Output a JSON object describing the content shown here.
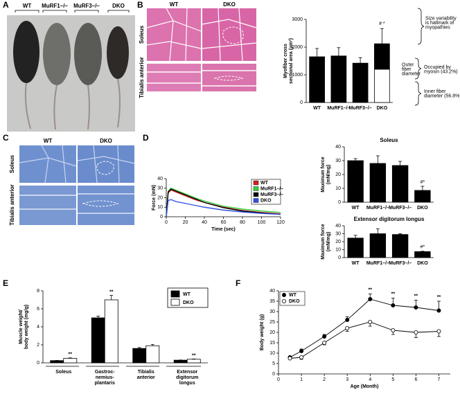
{
  "panel_labels": [
    "A",
    "B",
    "C",
    "D",
    "E",
    "F"
  ],
  "images": {
    "a_labels": [
      "WT",
      "MuRF1–/–",
      "MuRF3–/–",
      "DKO"
    ],
    "b_columns": [
      "WT",
      "DKO"
    ],
    "b_rows": [
      "Soleus",
      "Tibialis anterior"
    ],
    "c_columns": [
      "WT",
      "DKO"
    ],
    "c_rows": [
      "Soleus",
      "Tibialis anterior"
    ]
  },
  "chart_data": [
    {
      "type": "bar",
      "stacked": true,
      "y_label": "Myofiber cross\nsectional area (µm²)",
      "categories": [
        "WT",
        "MuRF1–/–",
        "MuRF3–/–",
        "DKO"
      ],
      "series": [
        {
          "color": "#ffffff",
          "values": [
            null,
            null,
            null,
            1200
          ]
        },
        {
          "color": "#000000",
          "values": [
            1650,
            1680,
            1420,
            920
          ],
          "errors": [
            300,
            300,
            200,
            550
          ]
        }
      ],
      "ylim": [
        0,
        3000
      ],
      "yticks": [
        0,
        1000,
        2000,
        3000
      ],
      "annotations": [
        "# *",
        "Size variability\nis hallmark of\nmyopathies",
        "Outer\nfiber\ndiameter",
        "Occupied by\nmyosin (43.2%)",
        "Inner fiber\ndiameter (56.8%)"
      ]
    },
    {
      "type": "line",
      "x": [
        0,
        2,
        5,
        10,
        20,
        30,
        40,
        60,
        80,
        100,
        120
      ],
      "series": [
        {
          "name": "WT",
          "color": "#d62020",
          "values": [
            0,
            25,
            28,
            26,
            22,
            18,
            15,
            10,
            6.5,
            4.5,
            3
          ]
        },
        {
          "name": "MuRF1–/–",
          "color": "#3ccc3c",
          "values": [
            0,
            27,
            30,
            28,
            24,
            20,
            16.5,
            11,
            8,
            6,
            4.5
          ]
        },
        {
          "name": "MuRF3–/–",
          "color": "#000000",
          "values": [
            0,
            26,
            29,
            27,
            23,
            19,
            15,
            9.5,
            6,
            4,
            2.5
          ]
        },
        {
          "name": "DKO",
          "color": "#3050e0",
          "values": [
            0,
            17,
            18,
            16,
            14,
            12,
            10,
            7,
            5,
            3.5,
            2.5
          ]
        }
      ],
      "xlim": [
        0,
        120
      ],
      "xticks": [
        0,
        20,
        40,
        60,
        80,
        100,
        120
      ],
      "ylim": [
        0,
        40
      ],
      "yticks": [
        0,
        10,
        20,
        30,
        40
      ],
      "x_label": "Time (sec)",
      "y_label": "Force (mN)",
      "legend": "upper right"
    },
    {
      "type": "bar",
      "title": "Soleus",
      "y_label": "Maximum force\n(mN/mg)",
      "categories": [
        "WT",
        "MuRF1–/–",
        "MuRF3–/–",
        "DKO"
      ],
      "values": [
        30,
        28,
        26.5,
        8.5
      ],
      "errors": [
        1.5,
        5.5,
        3,
        3
      ],
      "color": "#000000",
      "ylim": [
        0,
        40
      ],
      "yticks": [
        0,
        10,
        20,
        30,
        40
      ],
      "annotations": [
        "#*"
      ]
    },
    {
      "type": "bar",
      "title": "Extensor digitorum longus",
      "y_label": "Maximum force\n(mN/mg)",
      "categories": [
        "WT",
        "MuRF1–/–",
        "MuRF3–/–",
        "DKO"
      ],
      "values": [
        24.5,
        30,
        29,
        7.5
      ],
      "errors": [
        3.5,
        6,
        1,
        0.5
      ],
      "color": "#000000",
      "ylim": [
        0,
        40
      ],
      "yticks": [
        0,
        10,
        20,
        30,
        40
      ],
      "annotations": [
        "#*"
      ]
    },
    {
      "type": "bar",
      "y_label": "Muscle weight/\nbody weight (mg/g)",
      "categories": [
        "Soleus",
        "Gastroc-\nnemius-\nplantaris",
        "Tibialis\nanterior",
        "Extensor\ndigitorum\nlongus"
      ],
      "series": [
        {
          "name": "WT",
          "color": "#000000",
          "values": [
            0.25,
            5.0,
            1.6,
            0.3
          ],
          "errors": [
            0.02,
            0.2,
            0.1,
            0.02
          ]
        },
        {
          "name": "DKO",
          "color": "#ffffff",
          "values": [
            0.5,
            7.0,
            1.9,
            0.4
          ],
          "errors": [
            0.05,
            0.5,
            0.15,
            0.03
          ]
        }
      ],
      "ylim": [
        0,
        8
      ],
      "yticks": [
        0,
        2,
        4,
        6,
        8
      ],
      "legend": "upper right",
      "annotations": [
        "**",
        "**",
        "**"
      ]
    },
    {
      "type": "line",
      "markers": true,
      "x": [
        0.5,
        1,
        2,
        3,
        4,
        5,
        6,
        7
      ],
      "series": [
        {
          "name": "WT",
          "color": "#000000",
          "marker": "filled",
          "values": [
            8,
            11,
            18,
            26,
            36,
            33,
            32,
            30.5
          ],
          "errors": [
            0.5,
            1,
            1,
            1.5,
            2.5,
            3.5,
            3.5,
            4.5
          ]
        },
        {
          "name": "DKO",
          "color": "#000000",
          "marker": "open",
          "values": [
            7.5,
            8,
            15,
            22,
            25,
            21,
            20,
            20.5
          ],
          "errors": [
            0.5,
            1,
            1,
            1.5,
            2,
            2,
            2.5,
            2.5
          ]
        }
      ],
      "xlim": [
        0,
        7.5
      ],
      "xticks": [
        0,
        1,
        2,
        3,
        4,
        5,
        6,
        7
      ],
      "ylim": [
        0,
        40
      ],
      "yticks": [
        0,
        5,
        10,
        15,
        20,
        25,
        30,
        35,
        40
      ],
      "x_label": "Age (Month)",
      "y_label": "Body weight (g)",
      "legend": "upper left",
      "annotations": [
        {
          "text": "**",
          "x": 4
        },
        {
          "text": "**",
          "x": 5
        },
        {
          "text": "**",
          "x": 6
        },
        {
          "text": "**",
          "x": 7
        }
      ]
    }
  ]
}
